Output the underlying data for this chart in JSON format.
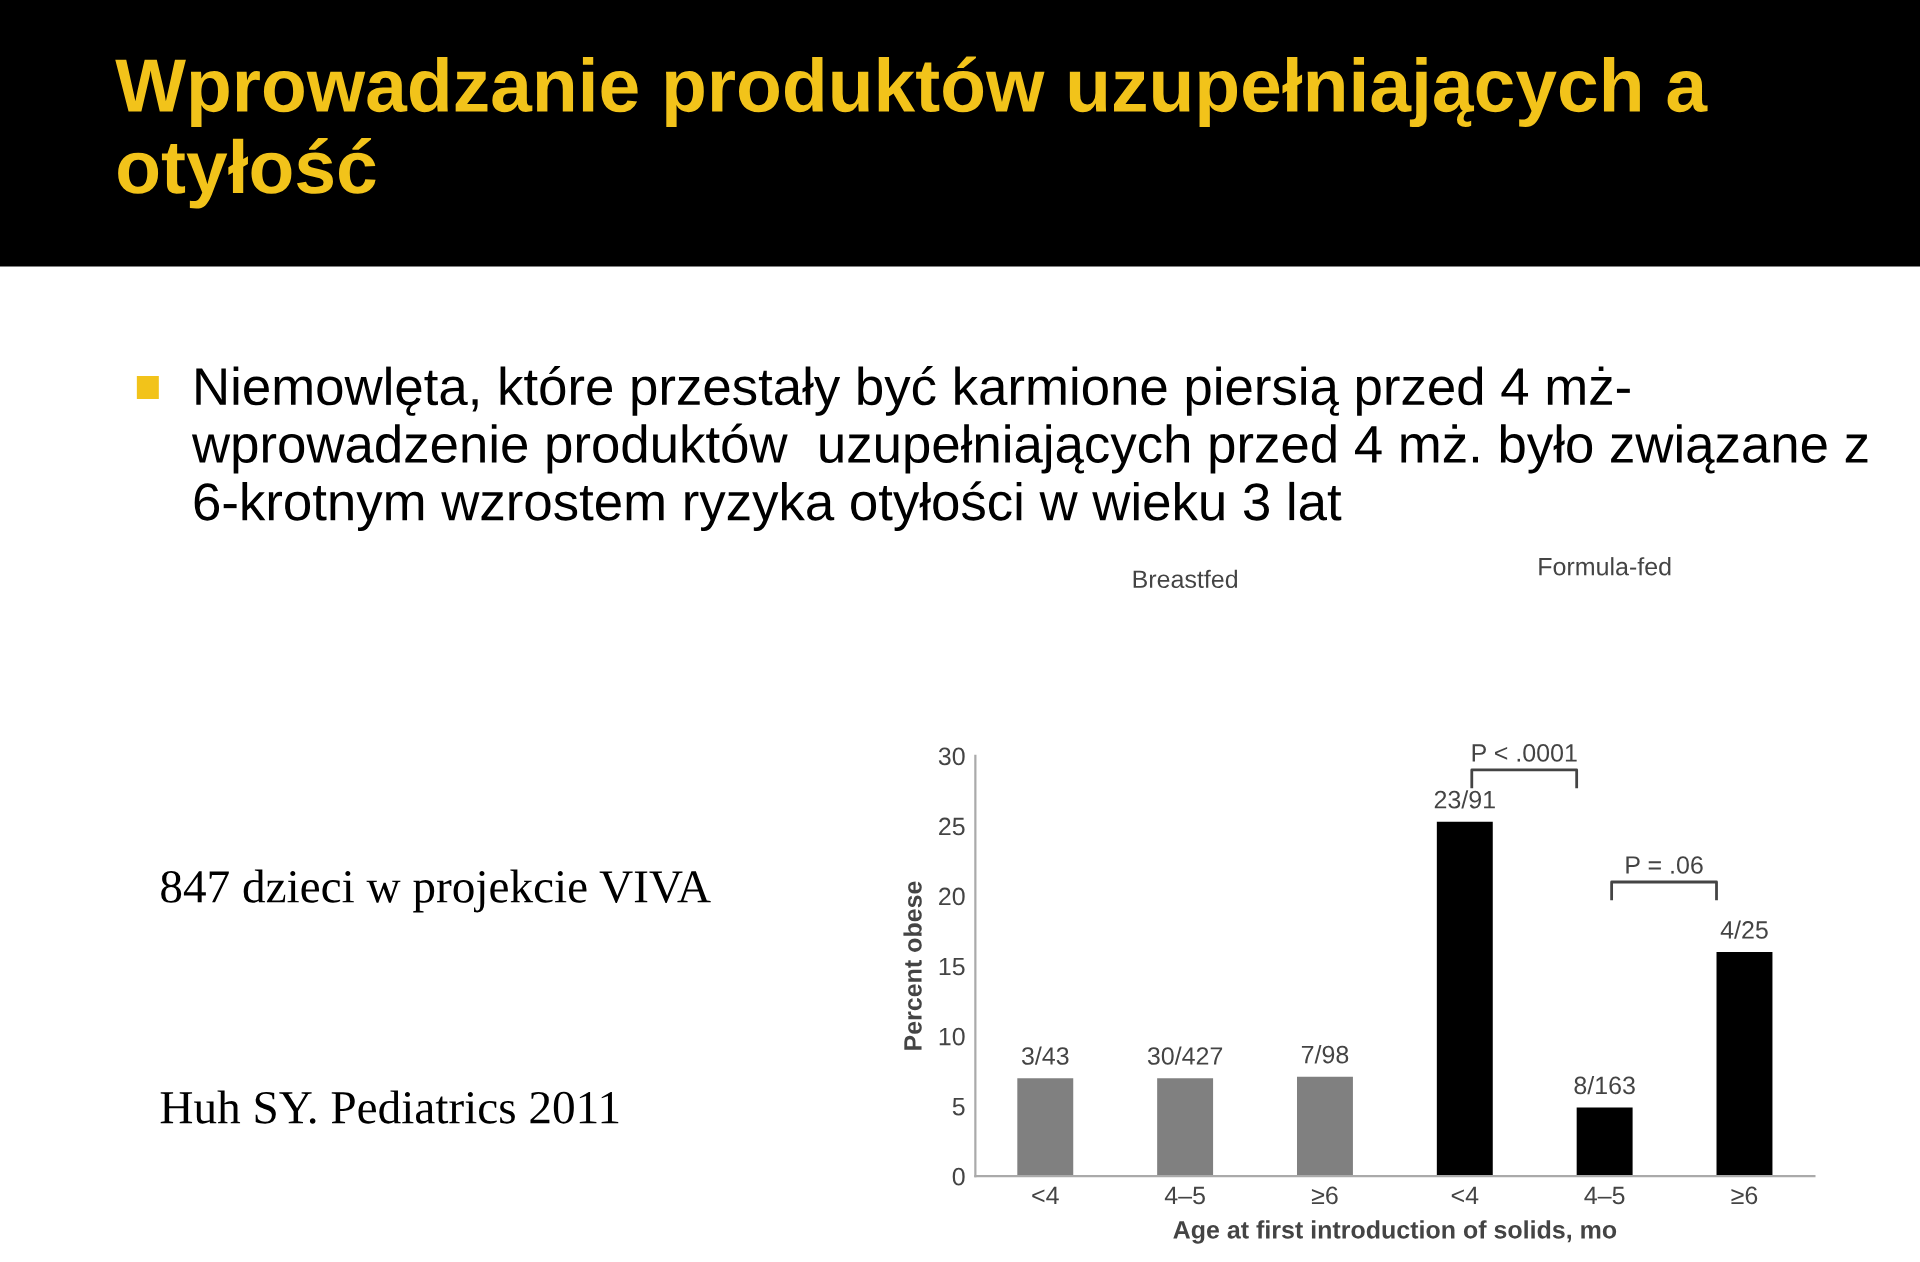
{
  "chart_data": {
    "type": "bar",
    "title": "Wprowadzanie produktów uzupełniających a otyłość",
    "subtitle": "Niemowlęta, które przestały być karmione piersią przed 4 mż- wprowadzenie produktów  uzupełniających przed 4 mż. było związane z 6-krotnym wzrostem ryzyka otyłości w wieku 3 lat",
    "xlabel": "Age at first introduction of solids, mo",
    "ylabel": "Percent obese",
    "categories": [
      "<4",
      "4–5",
      "≥6",
      "<4",
      "4–5",
      "≥6"
    ],
    "values": [
      7.0,
      7.0,
      7.1,
      25.3,
      4.9,
      16.0
    ],
    "colors": [
      "#808080",
      "#808080",
      "#808080",
      "#000000",
      "#000000",
      "#000000"
    ],
    "value_labels": [
      "3/43",
      "30/427",
      "7/98",
      "23/91",
      "8/163",
      "4/25"
    ],
    "ylim": [
      0,
      30
    ],
    "yticks": [
      0,
      5,
      10,
      15,
      20,
      25,
      30
    ],
    "grid": false,
    "legend": false,
    "annotations": [
      "Breastfed",
      "Formula-fed",
      "P < .0001",
      "P = .06",
      "847 dzieci w projekcie VIVA",
      "Huh SY. Pediatrics 2011"
    ]
  }
}
